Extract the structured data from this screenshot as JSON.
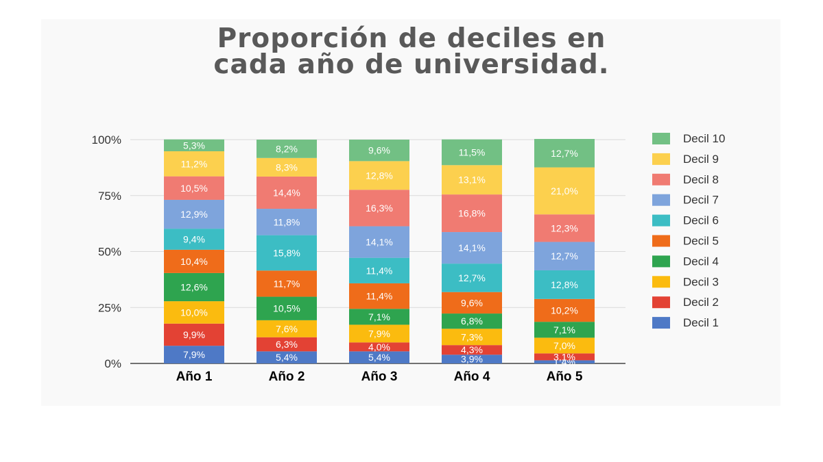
{
  "title_line1": "Proporción de deciles en",
  "title_line2": "cada año de universidad.",
  "chart_data": {
    "type": "bar",
    "stacked": true,
    "categories": [
      "Año 1",
      "Año 2",
      "Año 3",
      "Año 4",
      "Año 5"
    ],
    "yticks": [
      "0%",
      "25%",
      "50%",
      "75%",
      "100%"
    ],
    "ylim": [
      0,
      100
    ],
    "legend_position": "right",
    "series": [
      {
        "name": "Decil 1",
        "color": "#4e79c6",
        "values": [
          7.9,
          5.4,
          5.4,
          3.9,
          1.4
        ],
        "labels": [
          "7,9%",
          "5,4%",
          "5,4%",
          "3,9%",
          "1,4%"
        ]
      },
      {
        "name": "Decil 2",
        "color": "#e34234",
        "values": [
          9.9,
          6.3,
          4.0,
          4.3,
          3.1
        ],
        "labels": [
          "9,9%",
          "6,3%",
          "4,0%",
          "4,3%",
          "3,1%"
        ]
      },
      {
        "name": "Decil 3",
        "color": "#fbbb0f",
        "values": [
          10.0,
          7.6,
          7.9,
          7.3,
          7.0
        ],
        "labels": [
          "10,0%",
          "7,6%",
          "7,9%",
          "7,3%",
          "7,0%"
        ]
      },
      {
        "name": "Decil 4",
        "color": "#2ea44f",
        "values": [
          12.6,
          10.5,
          7.1,
          6.8,
          7.1
        ],
        "labels": [
          "12,6%",
          "10,5%",
          "7,1%",
          "6,8%",
          "7,1%"
        ]
      },
      {
        "name": "Decil 5",
        "color": "#ef6c1a",
        "values": [
          10.4,
          11.7,
          11.4,
          9.6,
          10.2
        ],
        "labels": [
          "10,4%",
          "11,7%",
          "11,4%",
          "9,6%",
          "10,2%"
        ]
      },
      {
        "name": "Decil 6",
        "color": "#3cbdc4",
        "values": [
          9.4,
          15.8,
          11.4,
          12.7,
          12.8
        ],
        "labels": [
          "9,4%",
          "15,8%",
          "11,4%",
          "12,7%",
          "12,8%"
        ]
      },
      {
        "name": "Decil 7",
        "color": "#7ea4dc",
        "values": [
          12.9,
          11.8,
          14.1,
          14.1,
          12.7
        ],
        "labels": [
          "12,9%",
          "11,8%",
          "14,1%",
          "14,1%",
          "12,7%"
        ]
      },
      {
        "name": "Decil 8",
        "color": "#f07b72",
        "values": [
          10.5,
          14.4,
          16.3,
          16.8,
          12.3
        ],
        "labels": [
          "10,5%",
          "14,4%",
          "16,3%",
          "16,8%",
          "12,3%"
        ]
      },
      {
        "name": "Decil 9",
        "color": "#fcd04e",
        "values": [
          11.2,
          8.3,
          12.8,
          13.1,
          21.0
        ],
        "labels": [
          "11,2%",
          "8,3%",
          "12,8%",
          "13,1%",
          "21,0%"
        ]
      },
      {
        "name": "Decil 10",
        "color": "#72c084",
        "values": [
          5.3,
          8.2,
          9.6,
          11.5,
          12.7
        ],
        "labels": [
          "5,3%",
          "8,2%",
          "9,6%",
          "11,5%",
          "12,7%"
        ]
      }
    ]
  }
}
